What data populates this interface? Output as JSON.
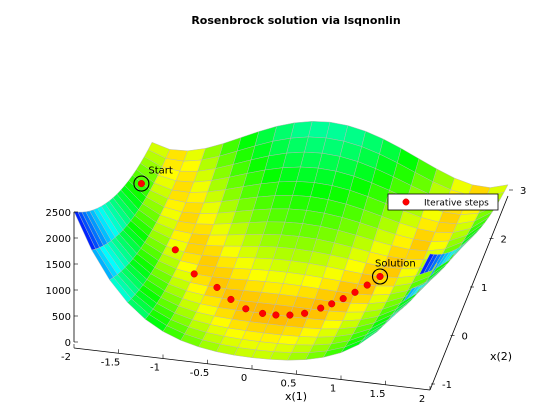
{
  "chart_data": {
    "type": "surface",
    "title": "Rosenbrock solution via lsqnonlin",
    "xlabel": "x(1)",
    "ylabel": "x(2)",
    "zlabel": "",
    "xlim": [
      -2,
      2
    ],
    "ylim": [
      -1,
      3
    ],
    "zlim": [
      0,
      2500
    ],
    "x_ticks": [
      "-2",
      "-1.5",
      "-1",
      "-0.5",
      "0",
      "0.5",
      "1",
      "1.5",
      "2"
    ],
    "y_ticks": [
      "-1",
      "0",
      "1",
      "2",
      "3"
    ],
    "z_ticks": [
      "0",
      "500",
      "1000",
      "1500",
      "2000",
      "2500"
    ],
    "colormap": "hsv",
    "grid": true,
    "legend": {
      "position": "right",
      "entries": [
        "Iterative steps"
      ]
    },
    "series": [
      {
        "name": "Iterative steps",
        "color": "#ff0000",
        "marker": "circle-filled",
        "points": [
          {
            "x": -1.9,
            "y": 2.0,
            "z": 267.6
          },
          {
            "x": -1.3,
            "y": 1.0,
            "z": 50.0
          },
          {
            "x": -1.0,
            "y": 0.6,
            "z": 20.0
          },
          {
            "x": -0.7,
            "y": 0.4,
            "z": 6.0
          },
          {
            "x": -0.5,
            "y": 0.2,
            "z": 3.0
          },
          {
            "x": -0.3,
            "y": 0.05,
            "z": 1.9
          },
          {
            "x": -0.1,
            "y": 0.0,
            "z": 1.2
          },
          {
            "x": 0.05,
            "y": 0.0,
            "z": 0.9
          },
          {
            "x": 0.2,
            "y": 0.03,
            "z": 0.7
          },
          {
            "x": 0.35,
            "y": 0.1,
            "z": 0.5
          },
          {
            "x": 0.5,
            "y": 0.24,
            "z": 0.25
          },
          {
            "x": 0.6,
            "y": 0.35,
            "z": 0.16
          },
          {
            "x": 0.7,
            "y": 0.48,
            "z": 0.1
          },
          {
            "x": 0.8,
            "y": 0.63,
            "z": 0.05
          },
          {
            "x": 0.9,
            "y": 0.8,
            "z": 0.02
          },
          {
            "x": 1.0,
            "y": 1.0,
            "z": 0.0
          }
        ]
      }
    ],
    "annotations": [
      {
        "text": "Start",
        "x": -1.9,
        "y": 2.0,
        "z": 267.6
      },
      {
        "text": "Solution",
        "x": 1.0,
        "y": 1.0,
        "z": 0.0
      }
    ]
  }
}
